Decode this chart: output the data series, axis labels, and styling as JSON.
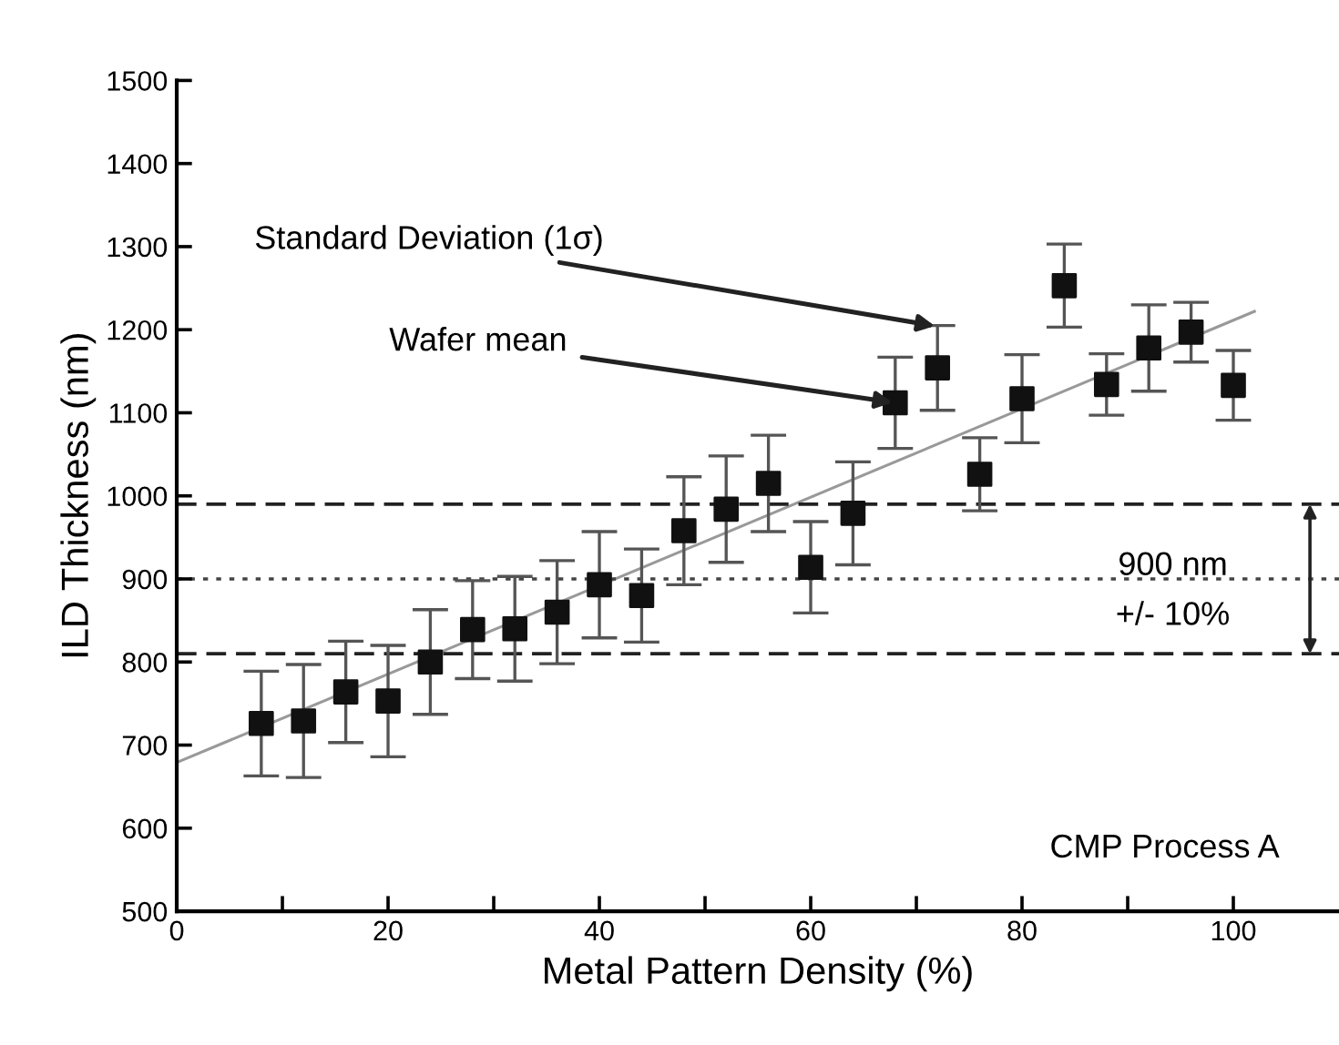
{
  "chart_data": {
    "type": "scatter",
    "xlabel": "Metal Pattern Density (%)",
    "ylabel": "ILD Thickness (nm)",
    "xlim": [
      0,
      110
    ],
    "xticks": [
      0,
      {
        "value": 10,
        "label": null
      },
      20,
      {
        "value": 30,
        "label": null
      },
      40,
      {
        "value": 50,
        "label": null
      },
      60,
      {
        "value": 70,
        "label": null
      },
      80,
      {
        "value": 90,
        "label": null
      },
      100
    ],
    "ylim": [
      500,
      1500
    ],
    "yticks": [
      500,
      600,
      700,
      800,
      900,
      1000,
      1100,
      1200,
      1300,
      1400,
      1500
    ],
    "grid": false,
    "legend": false,
    "series": [
      {
        "color": "#111111",
        "marker": "square",
        "x": [
          8,
          12,
          16,
          20,
          24,
          28,
          32,
          36,
          40,
          44,
          48,
          52,
          56,
          60,
          64,
          68,
          72,
          76,
          80,
          84,
          88,
          92,
          96,
          100
        ],
        "values": [
          726,
          729,
          764,
          753,
          800,
          839,
          840,
          860,
          893,
          880,
          958,
          984,
          1015,
          914,
          979,
          1112,
          1154,
          1026,
          1117,
          1253,
          1134,
          1178,
          1197,
          1133
        ],
        "errors": [
          63,
          68,
          61,
          67,
          63,
          59,
          63,
          62,
          64,
          56,
          65,
          64,
          58,
          55,
          62,
          55,
          51,
          44,
          53,
          50,
          37,
          52,
          36,
          42
        ]
      },
      {
        "type": "line",
        "color": "#999999",
        "marker": "none",
        "line_style": "solid",
        "x": [
          0,
          102
        ],
        "values": [
          679,
          1222
        ]
      }
    ],
    "ref_lines": [
      {
        "axis": "y",
        "value": 990,
        "color": "#222222",
        "line_style": "dashed"
      },
      {
        "axis": "y",
        "value": 900,
        "color": "#444444",
        "line_style": "dotted"
      },
      {
        "axis": "y",
        "value": 810,
        "color": "#222222",
        "line_style": "dashed"
      }
    ],
    "annotations": [
      {
        "text": "Standard Deviation (1σ)",
        "x": 72,
        "y": 1204
      },
      {
        "text": "Wafer mean",
        "x": 68,
        "y": 1112
      },
      "900 nm",
      "+/- 10%",
      "CMP Process A"
    ]
  }
}
